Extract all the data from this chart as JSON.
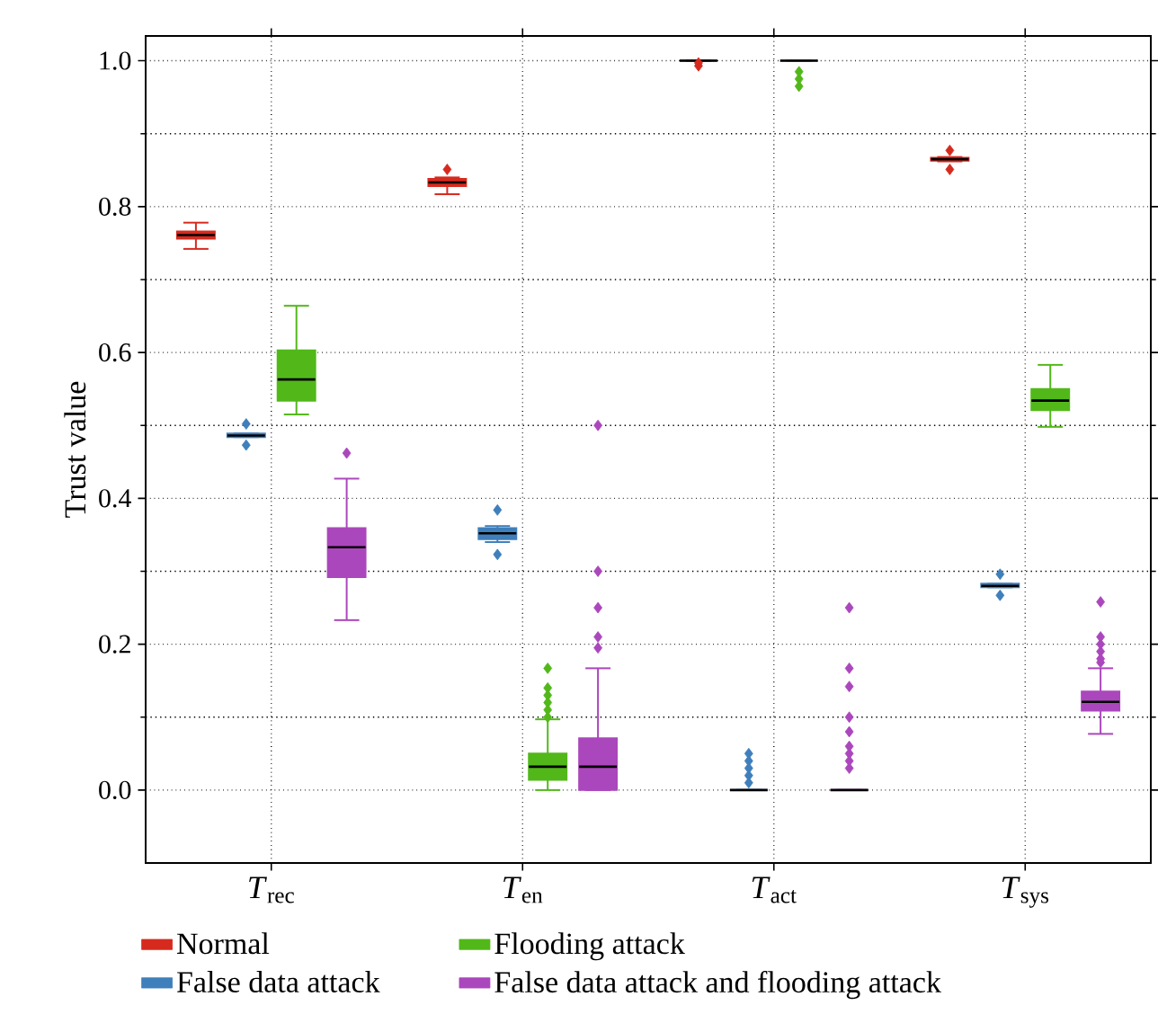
{
  "chart_data": {
    "type": "box",
    "ylabel": "Trust value",
    "categories": [
      "*T*$_{rec}$",
      "*T*$_{en}$",
      "*T*$_{act}$",
      "*T*$_{sys}$"
    ],
    "ylim": [
      -0.1,
      1.034
    ],
    "yticks": [
      {
        "value": 0,
        "label": "0.0"
      },
      {
        "value": 0.2,
        "label": "0.2"
      },
      {
        "value": 0.4,
        "label": "0.4"
      },
      {
        "value": 0.6,
        "label": "0.6"
      },
      {
        "value": 0.8,
        "label": "0.8"
      },
      {
        "value": 1,
        "label": "1.0"
      }
    ],
    "grid": true,
    "legend": "bottom",
    "marker": "diamond",
    "series": [
      {
        "name": "Normal",
        "color": "#d62a1e",
        "boxes": [
          {
            "low": 0.742,
            "q1": 0.756,
            "median": 0.761,
            "q3": 0.766,
            "high": 0.778
          },
          {
            "low": 0.817,
            "q1": 0.828,
            "median": 0.833,
            "q3": 0.838,
            "high": 0.84,
            "outliers": [
              0.851
            ]
          },
          {
            "low": 1.0,
            "q1": 1.0,
            "median": 1.0,
            "q3": 1.0,
            "high": 1.0,
            "outliers": [
              0.993,
              0.997
            ]
          },
          {
            "low": 0.862,
            "q1": 0.863,
            "median": 0.865,
            "q3": 0.867,
            "high": 0.868,
            "outliers": [
              0.851,
              0.877
            ]
          }
        ]
      },
      {
        "name": "False data attack",
        "color": "#3f7fbb",
        "boxes": [
          {
            "low": 0.484,
            "q1": 0.484,
            "median": 0.486,
            "q3": 0.489,
            "high": 0.489,
            "outliers": [
              0.473,
              0.502
            ]
          },
          {
            "low": 0.34,
            "q1": 0.344,
            "median": 0.352,
            "q3": 0.359,
            "high": 0.362,
            "outliers": [
              0.323,
              0.384
            ]
          },
          {
            "low": 0.0,
            "q1": 0.0,
            "median": 0.0,
            "q3": 0.0,
            "high": 0.0,
            "outliers": [
              0.01,
              0.02,
              0.03,
              0.04,
              0.05
            ]
          },
          {
            "low": 0.278,
            "q1": 0.278,
            "median": 0.28,
            "q3": 0.283,
            "high": 0.283,
            "outliers": [
              0.267,
              0.296
            ]
          }
        ]
      },
      {
        "name": "Flooding attack",
        "color": "#52b81a",
        "boxes": [
          {
            "low": 0.515,
            "q1": 0.534,
            "median": 0.563,
            "q3": 0.603,
            "high": 0.664
          },
          {
            "low": 0.0,
            "q1": 0.014,
            "median": 0.032,
            "q3": 0.05,
            "high": 0.097,
            "outliers": [
              0.1,
              0.11,
              0.12,
              0.13,
              0.14,
              0.167
            ]
          },
          {
            "low": 1.0,
            "q1": 1.0,
            "median": 1.0,
            "q3": 1.0,
            "high": 1.0,
            "outliers": [
              0.965,
              0.975,
              0.985
            ]
          },
          {
            "low": 0.498,
            "q1": 0.521,
            "median": 0.534,
            "q3": 0.55,
            "high": 0.583
          }
        ]
      },
      {
        "name": "False data attack and flooding attack",
        "color": "#ab47bc",
        "boxes": [
          {
            "low": 0.233,
            "q1": 0.292,
            "median": 0.333,
            "q3": 0.359,
            "high": 0.427,
            "outliers": [
              0.462
            ]
          },
          {
            "low": 0.0,
            "q1": 0.0,
            "median": 0.032,
            "q3": 0.071,
            "high": 0.167,
            "outliers": [
              0.195,
              0.21,
              0.25,
              0.3,
              0.5
            ]
          },
          {
            "low": 0.0,
            "q1": 0.0,
            "median": 0.0,
            "q3": 0.0,
            "high": 0.0,
            "outliers": [
              0.03,
              0.04,
              0.05,
              0.06,
              0.08,
              0.1,
              0.142,
              0.167,
              0.25
            ]
          },
          {
            "low": 0.077,
            "q1": 0.109,
            "median": 0.121,
            "q3": 0.135,
            "high": 0.167,
            "outliers": [
              0.175,
              0.18,
              0.19,
              0.2,
              0.21,
              0.258
            ]
          }
        ]
      }
    ]
  }
}
